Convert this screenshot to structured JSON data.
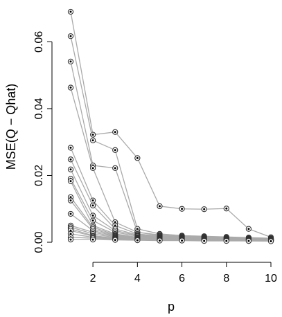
{
  "chart_data": {
    "type": "line",
    "title": "",
    "xlabel": "p",
    "ylabel": "MSE(Q − Qhat)",
    "x": [
      1,
      2,
      3,
      4,
      5,
      6,
      7,
      8,
      9,
      10
    ],
    "xlim": [
      1,
      10
    ],
    "ylim": [
      0,
      0.069
    ],
    "x_ticks": [
      2,
      4,
      6,
      8,
      10
    ],
    "x_tick_labels": [
      "2",
      "4",
      "6",
      "8",
      "10"
    ],
    "y_ticks": [
      0.0,
      0.02,
      0.04,
      0.06
    ],
    "y_tick_labels": [
      "0.00",
      "0.02",
      "0.04",
      "0.06"
    ],
    "grid": false,
    "legend": "none",
    "line_color": "#aaaaaa",
    "marker": "circled-dot",
    "series": [
      {
        "values": [
          0.069,
          0.0322,
          0.033,
          0.0252,
          0.0108,
          0.01,
          0.0099,
          0.0101,
          0.004,
          0.0015
        ]
      },
      {
        "values": [
          0.0617,
          0.0305,
          0.0276,
          0.004,
          0.0025,
          0.002,
          0.0018,
          0.0016,
          0.0014,
          0.0012
        ]
      },
      {
        "values": [
          0.0541,
          0.023,
          0.0222,
          0.003,
          0.0022,
          0.0018,
          0.0016,
          0.0014,
          0.0013,
          0.0011
        ]
      },
      {
        "values": [
          0.0463,
          0.0222,
          0.006,
          0.003,
          0.002,
          0.0017,
          0.0015,
          0.0013,
          0.0012,
          0.001
        ]
      },
      {
        "values": [
          0.0283,
          0.0125,
          0.005,
          0.0025,
          0.0018,
          0.0015,
          0.0014,
          0.0012,
          0.0011,
          0.001
        ]
      },
      {
        "values": [
          0.0248,
          0.011,
          0.004,
          0.0022,
          0.0017,
          0.0014,
          0.0013,
          0.0012,
          0.001,
          0.0009
        ]
      },
      {
        "values": [
          0.0218,
          0.008,
          0.0035,
          0.002,
          0.0015,
          0.0013,
          0.0012,
          0.0011,
          0.001,
          0.0009
        ]
      },
      {
        "values": [
          0.019,
          0.0065,
          0.003,
          0.0018,
          0.0014,
          0.0012,
          0.0011,
          0.001,
          0.0009,
          0.0008
        ]
      },
      {
        "values": [
          0.0183,
          0.005,
          0.0025,
          0.0015,
          0.0013,
          0.0011,
          0.001,
          0.0009,
          0.0009,
          0.0008
        ]
      },
      {
        "values": [
          0.0135,
          0.0045,
          0.0022,
          0.0014,
          0.0012,
          0.001,
          0.001,
          0.0009,
          0.0008,
          0.0007
        ]
      },
      {
        "values": [
          0.0125,
          0.004,
          0.002,
          0.0013,
          0.0011,
          0.001,
          0.0009,
          0.0008,
          0.0008,
          0.0007
        ]
      },
      {
        "values": [
          0.0085,
          0.0035,
          0.0018,
          0.0012,
          0.001,
          0.0009,
          0.0008,
          0.0008,
          0.0007,
          0.0006
        ]
      },
      {
        "values": [
          0.005,
          0.003,
          0.0016,
          0.0011,
          0.0009,
          0.0008,
          0.0008,
          0.0007,
          0.0007,
          0.0006
        ]
      },
      {
        "values": [
          0.0045,
          0.0025,
          0.0014,
          0.001,
          0.0009,
          0.0008,
          0.0007,
          0.0007,
          0.0006,
          0.0006
        ]
      },
      {
        "values": [
          0.004,
          0.002,
          0.0012,
          0.0009,
          0.0008,
          0.0007,
          0.0007,
          0.0006,
          0.0006,
          0.0005
        ]
      },
      {
        "values": [
          0.0035,
          0.0018,
          0.0011,
          0.0008,
          0.0007,
          0.0007,
          0.0006,
          0.0006,
          0.0005,
          0.0005
        ]
      },
      {
        "values": [
          0.0025,
          0.0015,
          0.001,
          0.0008,
          0.0007,
          0.0006,
          0.0006,
          0.0005,
          0.0005,
          0.0004
        ]
      },
      {
        "values": [
          0.0015,
          0.0012,
          0.0009,
          0.0007,
          0.0006,
          0.0006,
          0.0005,
          0.0005,
          0.0004,
          0.0004
        ]
      },
      {
        "values": [
          0.0008,
          0.0008,
          0.0007,
          0.0006,
          0.0005,
          0.0005,
          0.0004,
          0.0004,
          0.0004,
          0.0003
        ]
      }
    ]
  }
}
